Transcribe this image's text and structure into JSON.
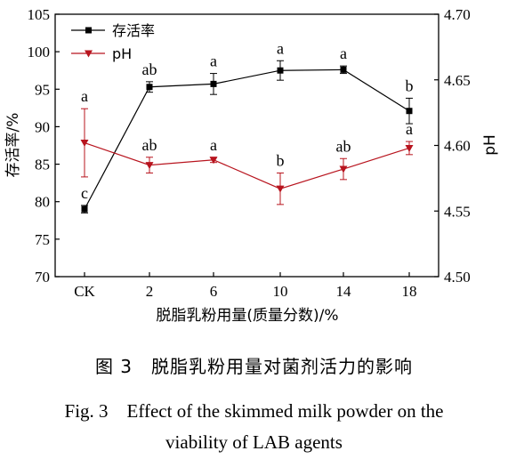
{
  "chart_data": {
    "type": "line",
    "categories": [
      "CK",
      "2",
      "6",
      "10",
      "14",
      "18"
    ],
    "xlabel": "脱脂乳粉用量(质量分数)/%",
    "ylabel": "存活率/%",
    "y2label": "pH",
    "ylim": [
      70,
      105
    ],
    "yticks": [
      "70",
      "75",
      "80",
      "85",
      "90",
      "95",
      "100",
      "105"
    ],
    "y2lim": [
      4.5,
      4.7
    ],
    "y2ticks": [
      "4.50",
      "4.55",
      "4.60",
      "4.65",
      "4.70"
    ],
    "legend_position": "top-left",
    "grid": false,
    "series": [
      {
        "name": "存活率",
        "axis": "left",
        "color": "#000000",
        "marker": "square",
        "values": [
          79.0,
          95.3,
          95.7,
          97.5,
          97.6,
          92.1
        ],
        "errors": [
          0.5,
          0.7,
          1.4,
          1.3,
          0.5,
          1.7
        ],
        "labels": [
          "c",
          "ab",
          "a",
          "a",
          "a",
          "b"
        ]
      },
      {
        "name": "pH",
        "axis": "right",
        "color": "#b8141e",
        "marker": "triangle-down",
        "values": [
          4.602,
          4.585,
          4.589,
          4.567,
          4.582,
          4.598
        ],
        "errors": [
          0.026,
          0.006,
          0.002,
          0.012,
          0.008,
          0.005
        ],
        "labels": [
          "a",
          "ab",
          "a",
          "b",
          "ab",
          "a"
        ]
      }
    ]
  },
  "caption": {
    "cn": "图 3　脱脂乳粉用量对菌剂活力的影响",
    "en_line1": "Fig. 3　Effect of the skimmed milk powder on the",
    "en_line2": "viability of LAB agents"
  }
}
